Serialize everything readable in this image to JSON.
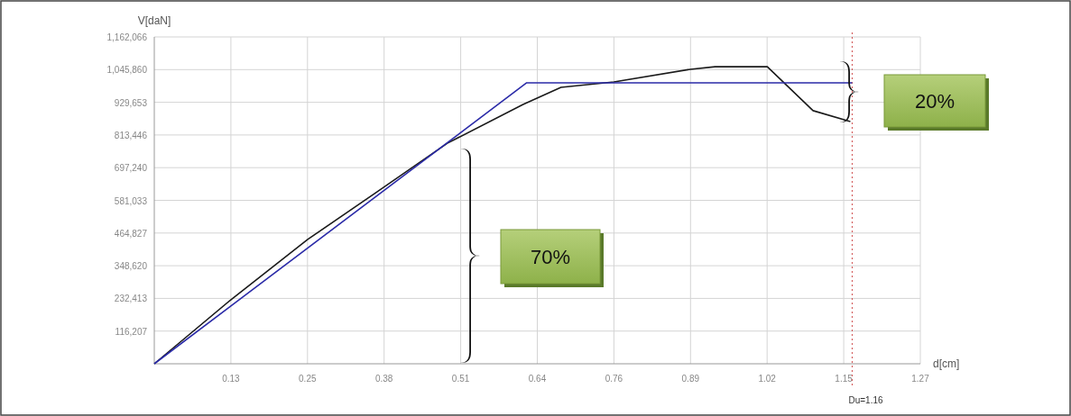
{
  "chart_data": {
    "type": "line",
    "xlabel": "d[cm]",
    "ylabel": "V[daN]",
    "xlim": [
      0,
      1.2733
    ],
    "xticks": [
      {
        "value": 0.12733,
        "label": "0.13"
      },
      {
        "value": 0.25466,
        "label": "0.25"
      },
      {
        "value": 0.38199,
        "label": "0.38"
      },
      {
        "value": 0.50932,
        "label": "0.51"
      },
      {
        "value": 0.63665,
        "label": "0.64"
      },
      {
        "value": 0.76398,
        "label": "0.76"
      },
      {
        "value": 0.89131,
        "label": "0.89"
      },
      {
        "value": 1.01864,
        "label": "1.02"
      },
      {
        "value": 1.14597,
        "label": "1.15"
      },
      {
        "value": 1.2733,
        "label": "1.27"
      }
    ],
    "ylim": [
      0,
      1162066
    ],
    "yticks": [
      {
        "value": 116207,
        "label": "116,207"
      },
      {
        "value": 232413,
        "label": "232,413"
      },
      {
        "value": 348620,
        "label": "348,620"
      },
      {
        "value": 464827,
        "label": "464,827"
      },
      {
        "value": 581033,
        "label": "581,033"
      },
      {
        "value": 697240,
        "label": "697,240"
      },
      {
        "value": 813446,
        "label": "813,446"
      },
      {
        "value": 929653,
        "label": "929,653"
      },
      {
        "value": 1045860,
        "label": "1,045,860"
      },
      {
        "value": 1162066,
        "label": "1,162,066"
      }
    ],
    "series": [
      {
        "color": "#1a1a1a",
        "x": [
          0,
          0.127,
          0.255,
          0.368,
          0.487,
          0.613,
          0.676,
          0.764,
          0.891,
          0.932,
          1.019,
          1.095,
          1.157
        ],
        "values": [
          0,
          227000,
          442000,
          608000,
          784000,
          922000,
          983000,
          1002000,
          1047000,
          1056000,
          1056000,
          900000,
          861000
        ]
      },
      {
        "color": "#2b2ba8",
        "x": [
          0,
          0.619,
          1.16
        ],
        "values": [
          0,
          999000,
          999000
        ]
      }
    ],
    "ref_lines": [
      {
        "axis": "x",
        "value": 1.16,
        "label": "Du=1.16",
        "color": "#d05050",
        "line_style": "dotted"
      }
    ],
    "annotations": [
      "70%",
      "20%"
    ],
    "grid": true,
    "marker": "none",
    "line_style": "solid"
  }
}
